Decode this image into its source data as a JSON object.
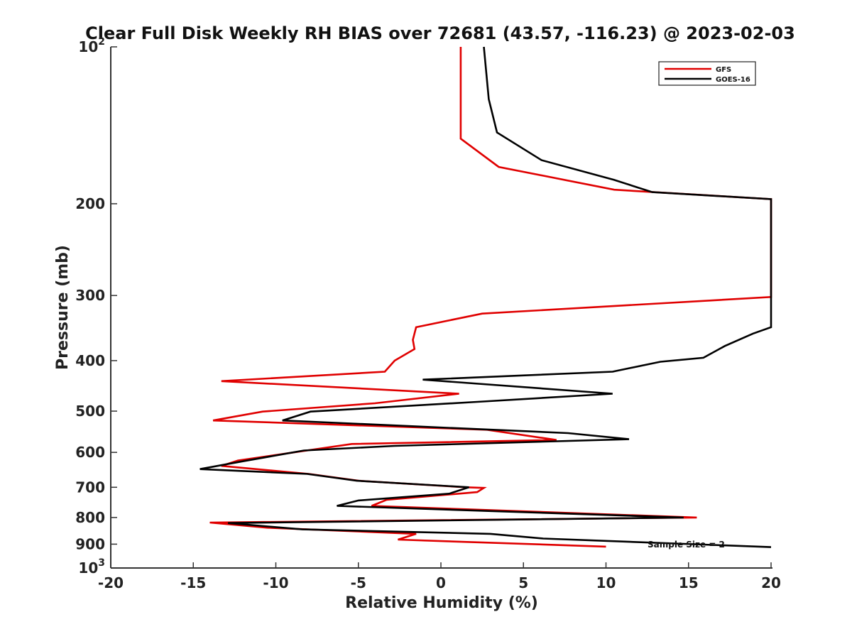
{
  "chart_data": {
    "type": "line",
    "title": "Clear Full Disk Weekly RH BIAS over 72681 (43.57, -116.23) @ 2023-02-03",
    "xlabel": "Relative Humidity (%)",
    "ylabel": "Pressure (mb)",
    "xlim": [
      -20,
      20
    ],
    "ylim": [
      100,
      1000
    ],
    "y_scale": "log",
    "y_reversed": true,
    "x_ticks": [
      "-20",
      "-15",
      "-10",
      "-5",
      "0",
      "5",
      "10",
      "15",
      "20"
    ],
    "y_ticks": [
      {
        "value": 100,
        "base": "10",
        "exp": "2"
      },
      {
        "value": 200,
        "label": "200"
      },
      {
        "value": 300,
        "label": "300"
      },
      {
        "value": 400,
        "label": "400"
      },
      {
        "value": 500,
        "label": "500"
      },
      {
        "value": 600,
        "label": "600"
      },
      {
        "value": 700,
        "label": "700"
      },
      {
        "value": 800,
        "label": "800"
      },
      {
        "value": 900,
        "label": "900"
      },
      {
        "value": 1000,
        "base": "10",
        "exp": "3"
      }
    ],
    "legend_position": "top-right",
    "annotation": "Sample Size = 2",
    "series": [
      {
        "name": "GFS",
        "color": "#e00000",
        "points": [
          [
            1.2,
            100
          ],
          [
            1.2,
            150
          ],
          [
            3.5,
            170
          ],
          [
            10.5,
            188
          ],
          [
            20,
            196
          ],
          [
            20,
            302
          ],
          [
            2.5,
            325
          ],
          [
            -1.5,
            345
          ],
          [
            -1.7,
            365
          ],
          [
            -1.6,
            380
          ],
          [
            -2.8,
            400
          ],
          [
            -3.4,
            420
          ],
          [
            -13.3,
            438
          ],
          [
            1.1,
            463
          ],
          [
            -4,
            483
          ],
          [
            -10.8,
            501
          ],
          [
            -13.8,
            521
          ],
          [
            2.8,
            543
          ],
          [
            7,
            568
          ],
          [
            -5.4,
            578
          ],
          [
            -12.3,
            622
          ],
          [
            -13.3,
            637
          ],
          [
            -8,
            660
          ],
          [
            -5,
            680
          ],
          [
            1.5,
            700
          ],
          [
            2.6,
            702
          ],
          [
            2.2,
            715
          ],
          [
            -3.3,
            740
          ],
          [
            -4.2,
            760
          ],
          [
            15.5,
            800
          ],
          [
            -14,
            818
          ],
          [
            -10.5,
            837
          ],
          [
            -1.5,
            860
          ],
          [
            -2.6,
            882
          ],
          [
            10,
            910
          ]
        ]
      },
      {
        "name": "GOES-16",
        "color": "#000000",
        "points": [
          [
            2.6,
            100
          ],
          [
            2.9,
            126
          ],
          [
            3.4,
            146
          ],
          [
            6.1,
            165
          ],
          [
            10.5,
            180
          ],
          [
            12.8,
            190
          ],
          [
            20,
            196
          ],
          [
            20,
            345
          ],
          [
            18.9,
            355
          ],
          [
            17.2,
            375
          ],
          [
            15.9,
            395
          ],
          [
            13.3,
            402
          ],
          [
            10.4,
            420
          ],
          [
            -1.1,
            435
          ],
          [
            10.4,
            463
          ],
          [
            2.2,
            480
          ],
          [
            -7.9,
            501
          ],
          [
            -9.6,
            521
          ],
          [
            7.7,
            551
          ],
          [
            11.4,
            566
          ],
          [
            -2.8,
            583
          ],
          [
            -8.3,
            595
          ],
          [
            -12,
            624
          ],
          [
            -14.6,
            646
          ],
          [
            -8.1,
            660
          ],
          [
            -5.1,
            680
          ],
          [
            1.7,
            700
          ],
          [
            0.5,
            720
          ],
          [
            -5,
            742
          ],
          [
            -6.3,
            760
          ],
          [
            14.7,
            800
          ],
          [
            -12.9,
            820
          ],
          [
            -8.4,
            843
          ],
          [
            3,
            860
          ],
          [
            6.2,
            878
          ],
          [
            20,
            912
          ]
        ]
      }
    ]
  }
}
